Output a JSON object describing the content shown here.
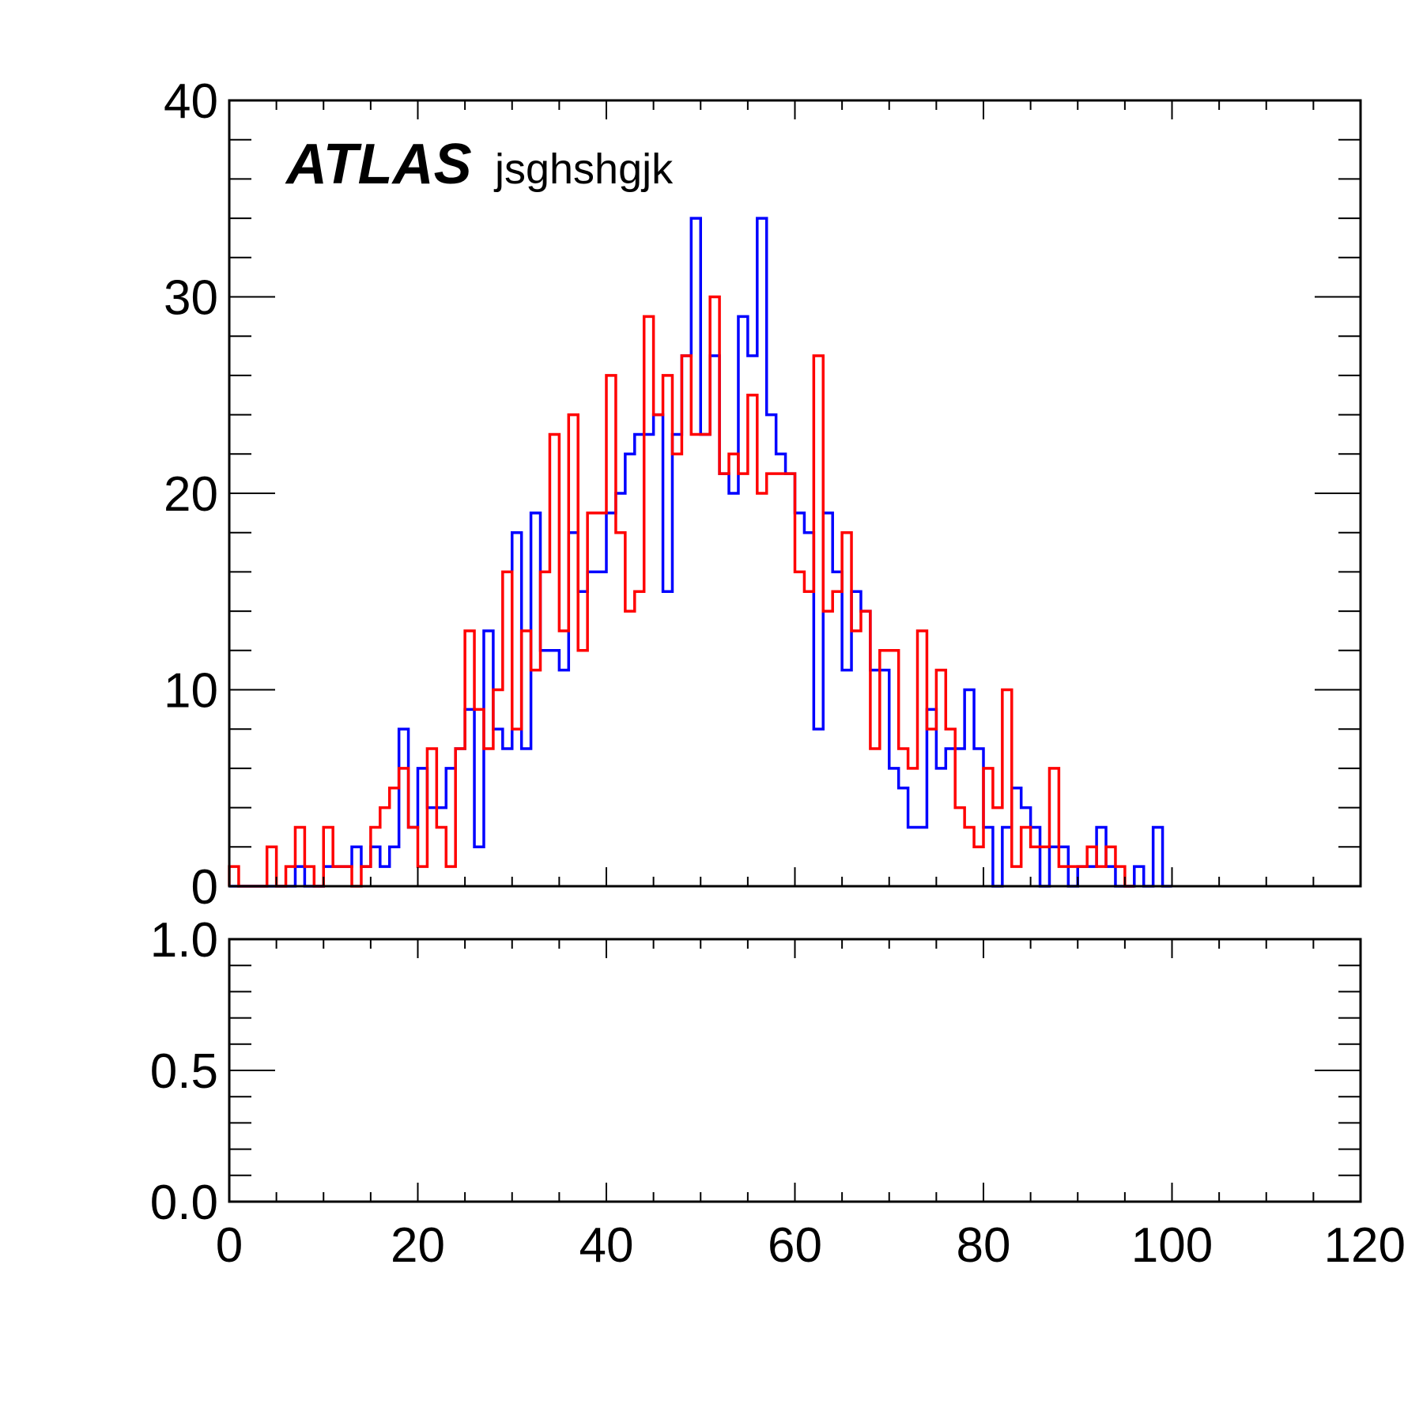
{
  "chart_data": [
    {
      "type": "histogram",
      "label": {
        "experiment": "ATLAS",
        "text": "jsghshgjk"
      },
      "xlim": [
        0,
        120
      ],
      "ylim": [
        0,
        40
      ],
      "bin_width": 1,
      "x_start": 0,
      "yticks": [
        {
          "value": 0,
          "label": "0"
        },
        {
          "value": 10,
          "label": "10"
        },
        {
          "value": 20,
          "label": "20"
        },
        {
          "value": 30,
          "label": "30"
        },
        {
          "value": 40,
          "label": "40"
        }
      ],
      "series": [
        {
          "color": "#0000ff",
          "values": [
            0,
            0,
            0,
            0,
            0,
            0,
            0,
            1,
            0,
            0,
            1,
            1,
            1,
            2,
            1,
            2,
            1,
            2,
            8,
            3,
            6,
            4,
            4,
            6,
            7,
            9,
            2,
            13,
            8,
            7,
            18,
            7,
            19,
            12,
            12,
            11,
            18,
            15,
            16,
            16,
            19,
            20,
            22,
            23,
            23,
            24,
            15,
            23,
            27,
            34,
            23,
            27,
            21,
            20,
            29,
            27,
            34,
            24,
            22,
            21,
            19,
            18,
            8,
            19,
            16,
            11,
            15,
            14,
            11,
            11,
            6,
            5,
            3,
            3,
            9,
            6,
            7,
            7,
            10,
            7,
            3,
            0,
            3,
            5,
            4,
            3,
            0,
            2,
            2,
            0,
            1,
            1,
            3,
            1,
            0,
            0,
            1,
            0,
            3,
            0
          ]
        },
        {
          "color": "#ff0000",
          "values": [
            1,
            0,
            0,
            0,
            2,
            0,
            1,
            3,
            1,
            0,
            3,
            1,
            1,
            0,
            1,
            3,
            4,
            5,
            6,
            3,
            1,
            7,
            3,
            1,
            7,
            13,
            9,
            7,
            10,
            16,
            8,
            13,
            11,
            16,
            23,
            13,
            24,
            12,
            19,
            19,
            26,
            18,
            14,
            15,
            29,
            24,
            26,
            22,
            27,
            23,
            23,
            30,
            21,
            22,
            21,
            25,
            20,
            21,
            21,
            21,
            16,
            15,
            27,
            14,
            15,
            18,
            13,
            14,
            7,
            12,
            12,
            7,
            6,
            13,
            8,
            11,
            8,
            4,
            3,
            2,
            6,
            4,
            10,
            1,
            3,
            2,
            2,
            6,
            1,
            1,
            1,
            2,
            1,
            2,
            1,
            0
          ]
        }
      ]
    },
    {
      "type": "line",
      "xlim": [
        0,
        120
      ],
      "ylim": [
        0,
        1
      ],
      "series": [],
      "xticks": [
        {
          "value": 0,
          "label": "0"
        },
        {
          "value": 20,
          "label": "20"
        },
        {
          "value": 40,
          "label": "40"
        },
        {
          "value": 60,
          "label": "60"
        },
        {
          "value": 80,
          "label": "80"
        },
        {
          "value": 100,
          "label": "100"
        },
        {
          "value": 120,
          "label": "120"
        }
      ],
      "yticks": [
        {
          "value": 0,
          "label": "0.0"
        },
        {
          "value": 0.5,
          "label": "0.5"
        },
        {
          "value": 1,
          "label": "1.0"
        }
      ]
    }
  ]
}
